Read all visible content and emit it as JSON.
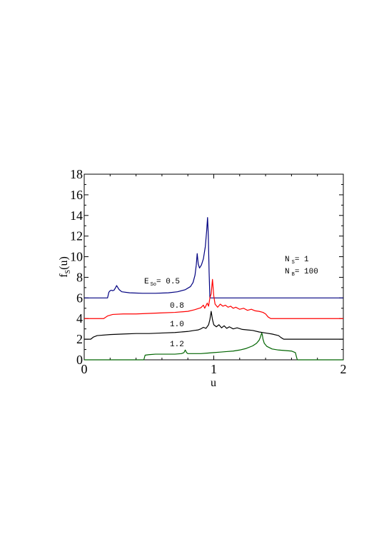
{
  "chart_data": {
    "type": "line",
    "xlabel": "u",
    "ylabel": {
      "main": "f",
      "sub": "S",
      "tail": "(u)"
    },
    "xlim": [
      0,
      2
    ],
    "ylim": [
      0,
      18
    ],
    "x_ticks": [
      "0",
      "1",
      "2"
    ],
    "y_ticks": [
      "0",
      "2",
      "4",
      "6",
      "8",
      "10",
      "12",
      "14",
      "16",
      "18"
    ],
    "grid": false,
    "annotation": {
      "ns": {
        "main": "N",
        "sub": "S",
        "tail": "= 1"
      },
      "nb": {
        "main": "N",
        "sub": "B",
        "tail": "= 100"
      }
    },
    "series": [
      {
        "label_parts": {
          "main": "E",
          "sub": "So",
          "tail": "= 0.5"
        },
        "color": "#000080",
        "points": [
          [
            0,
            6.0
          ],
          [
            0.18,
            6.0
          ],
          [
            0.19,
            6.55
          ],
          [
            0.2,
            6.7
          ],
          [
            0.21,
            6.75
          ],
          [
            0.22,
            6.7
          ],
          [
            0.23,
            6.75
          ],
          [
            0.24,
            6.95
          ],
          [
            0.25,
            7.2
          ],
          [
            0.26,
            7.0
          ],
          [
            0.27,
            6.8
          ],
          [
            0.29,
            6.6
          ],
          [
            0.35,
            6.5
          ],
          [
            0.45,
            6.45
          ],
          [
            0.55,
            6.45
          ],
          [
            0.65,
            6.5
          ],
          [
            0.72,
            6.6
          ],
          [
            0.78,
            6.8
          ],
          [
            0.82,
            7.1
          ],
          [
            0.84,
            7.5
          ],
          [
            0.855,
            8.2
          ],
          [
            0.865,
            9.2
          ],
          [
            0.872,
            10.3
          ],
          [
            0.88,
            9.3
          ],
          [
            0.89,
            8.9
          ],
          [
            0.905,
            9.2
          ],
          [
            0.92,
            9.8
          ],
          [
            0.935,
            11.0
          ],
          [
            0.945,
            12.5
          ],
          [
            0.952,
            13.8
          ],
          [
            0.958,
            12.0
          ],
          [
            0.964,
            8.5
          ],
          [
            0.97,
            6.0
          ],
          [
            2.0,
            6.0
          ]
        ]
      },
      {
        "label_parts": {
          "main": "",
          "sub": "",
          "tail": "0.8"
        },
        "color": "#ff0000",
        "points": [
          [
            0,
            4.0
          ],
          [
            0.15,
            4.0
          ],
          [
            0.18,
            4.25
          ],
          [
            0.22,
            4.4
          ],
          [
            0.3,
            4.45
          ],
          [
            0.4,
            4.45
          ],
          [
            0.5,
            4.5
          ],
          [
            0.6,
            4.55
          ],
          [
            0.7,
            4.6
          ],
          [
            0.8,
            4.7
          ],
          [
            0.85,
            4.85
          ],
          [
            0.9,
            5.05
          ],
          [
            0.92,
            5.3
          ],
          [
            0.93,
            5.0
          ],
          [
            0.95,
            5.5
          ],
          [
            0.96,
            5.2
          ],
          [
            0.97,
            6.0
          ],
          [
            0.98,
            6.4
          ],
          [
            0.99,
            7.8
          ],
          [
            1.0,
            6.2
          ],
          [
            1.01,
            5.4
          ],
          [
            1.03,
            5.1
          ],
          [
            1.05,
            5.4
          ],
          [
            1.07,
            5.2
          ],
          [
            1.09,
            5.3
          ],
          [
            1.11,
            5.1
          ],
          [
            1.13,
            5.2
          ],
          [
            1.15,
            5.0
          ],
          [
            1.17,
            5.1
          ],
          [
            1.2,
            4.9
          ],
          [
            1.23,
            5.0
          ],
          [
            1.26,
            4.8
          ],
          [
            1.29,
            4.9
          ],
          [
            1.32,
            4.75
          ],
          [
            1.35,
            4.7
          ],
          [
            1.38,
            4.6
          ],
          [
            1.4,
            4.45
          ],
          [
            1.42,
            4.15
          ],
          [
            1.44,
            4.0
          ],
          [
            2.0,
            4.0
          ]
        ]
      },
      {
        "label_parts": {
          "main": "",
          "sub": "",
          "tail": "1.0"
        },
        "color": "#000000",
        "points": [
          [
            0,
            2.0
          ],
          [
            0.05,
            2.0
          ],
          [
            0.07,
            2.2
          ],
          [
            0.1,
            2.35
          ],
          [
            0.2,
            2.45
          ],
          [
            0.3,
            2.5
          ],
          [
            0.4,
            2.55
          ],
          [
            0.5,
            2.55
          ],
          [
            0.6,
            2.6
          ],
          [
            0.7,
            2.65
          ],
          [
            0.8,
            2.75
          ],
          [
            0.85,
            2.85
          ],
          [
            0.88,
            2.9
          ],
          [
            0.9,
            3.0
          ],
          [
            0.92,
            3.15
          ],
          [
            0.94,
            3.05
          ],
          [
            0.96,
            3.4
          ],
          [
            0.97,
            3.9
          ],
          [
            0.98,
            4.7
          ],
          [
            0.99,
            3.9
          ],
          [
            1.0,
            3.4
          ],
          [
            1.02,
            3.2
          ],
          [
            1.04,
            3.4
          ],
          [
            1.06,
            3.1
          ],
          [
            1.08,
            3.3
          ],
          [
            1.1,
            3.05
          ],
          [
            1.12,
            3.2
          ],
          [
            1.15,
            3.0
          ],
          [
            1.18,
            3.1
          ],
          [
            1.22,
            2.95
          ],
          [
            1.26,
            2.9
          ],
          [
            1.3,
            2.85
          ],
          [
            1.35,
            2.7
          ],
          [
            1.4,
            2.6
          ],
          [
            1.45,
            2.5
          ],
          [
            1.5,
            2.35
          ],
          [
            1.52,
            2.15
          ],
          [
            1.54,
            2.0
          ],
          [
            2.0,
            2.0
          ]
        ]
      },
      {
        "label_parts": {
          "main": "",
          "sub": "",
          "tail": "1.2"
        },
        "color": "#006400",
        "points": [
          [
            0,
            0.0
          ],
          [
            0.46,
            0.0
          ],
          [
            0.47,
            0.45
          ],
          [
            0.5,
            0.5
          ],
          [
            0.55,
            0.55
          ],
          [
            0.6,
            0.55
          ],
          [
            0.65,
            0.55
          ],
          [
            0.7,
            0.55
          ],
          [
            0.75,
            0.6
          ],
          [
            0.77,
            0.7
          ],
          [
            0.78,
            0.95
          ],
          [
            0.79,
            0.7
          ],
          [
            0.8,
            0.6
          ],
          [
            0.85,
            0.6
          ],
          [
            0.9,
            0.6
          ],
          [
            0.95,
            0.65
          ],
          [
            1.0,
            0.7
          ],
          [
            1.05,
            0.75
          ],
          [
            1.1,
            0.8
          ],
          [
            1.15,
            0.85
          ],
          [
            1.2,
            0.95
          ],
          [
            1.25,
            1.1
          ],
          [
            1.3,
            1.35
          ],
          [
            1.33,
            1.6
          ],
          [
            1.35,
            1.9
          ],
          [
            1.36,
            2.2
          ],
          [
            1.37,
            2.6
          ],
          [
            1.375,
            2.4
          ],
          [
            1.38,
            2.0
          ],
          [
            1.39,
            1.6
          ],
          [
            1.41,
            1.3
          ],
          [
            1.45,
            1.05
          ],
          [
            1.5,
            0.95
          ],
          [
            1.55,
            0.9
          ],
          [
            1.6,
            0.85
          ],
          [
            1.63,
            0.7
          ],
          [
            1.64,
            0.2
          ],
          [
            1.645,
            0.0
          ],
          [
            2.0,
            0.0
          ]
        ]
      }
    ]
  }
}
